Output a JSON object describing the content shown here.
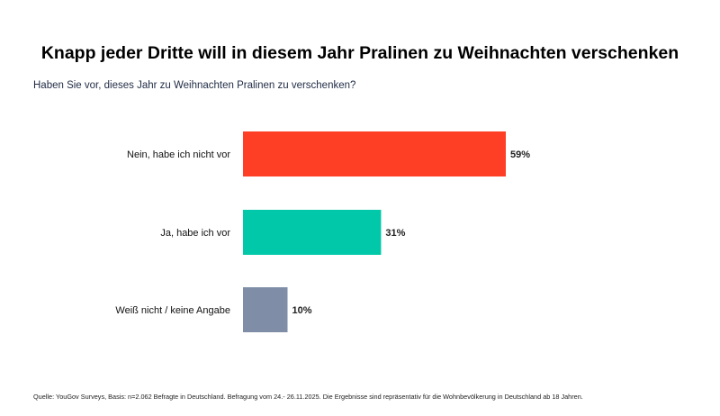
{
  "chart_data": {
    "type": "bar",
    "orientation": "horizontal",
    "title": "Knapp jeder Dritte will in diesem Jahr Pralinen zu Weihnachten verschenken",
    "subtitle": "Haben Sie vor, dieses Jahr zu Weihnachten Pralinen zu verschenken?",
    "categories": [
      "Nein, habe ich nicht vor",
      "Ja, habe ich vor",
      "Weiß nicht / keine Angabe"
    ],
    "values": [
      59,
      31,
      10
    ],
    "value_labels": [
      "59%",
      "31%",
      "10%"
    ],
    "colors": [
      "#ff3f25",
      "#00c8a8",
      "#7f8ea6"
    ],
    "unit": "%",
    "xlim": [
      0,
      100
    ],
    "grid": false,
    "legend": "none"
  },
  "footer": {
    "source": "Quelle: YouGov Surveys, Basis: n=2.062 Befragte in Deutschland. Befragung vom 24.- 26.11.2025. Die Ergebnisse sind repräsentativ für die Wohnbevölkerung in Deutschland ab 18 Jahren."
  }
}
